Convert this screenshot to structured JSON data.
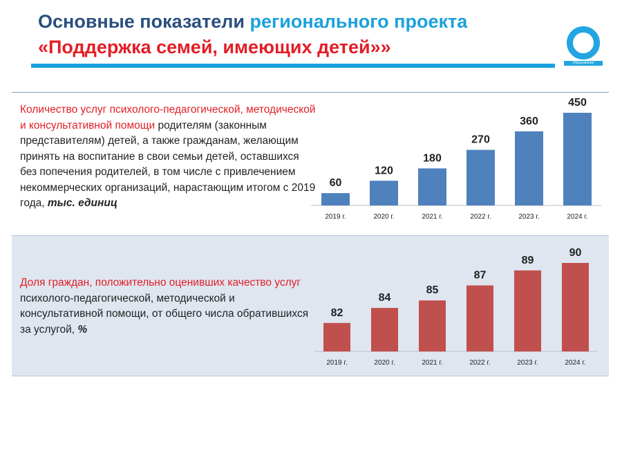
{
  "title": {
    "part1": "Основные показатели ",
    "part2": "регионального проекта",
    "line2": "«Поддержка семей, имеющих детей»»"
  },
  "logo": {
    "text": "Образование"
  },
  "panels": [
    {
      "desc_red": "Количество услуг психолого-педагогической, методической и консультативной помощи",
      "desc_rest": " родителям (законным представителям) детей, а также гражданам, желающим принять на воспитание в свои семьи детей, оставшихся без попечения родителей, в том числе с привлечением некоммерческих организаций, нарастающим итогом с 2019 года, ",
      "desc_unit": "тыс. единиц"
    },
    {
      "desc_red": "Доля граждан, положительно оценивших качество услуг",
      "desc_rest": " психолого-педагогической, методической и консультативной помощи, от общего числа обратившихся за услугой, ",
      "desc_unit": "%"
    }
  ],
  "chart_data": [
    {
      "type": "bar",
      "categories": [
        "2019 г.",
        "2020 г.",
        "2021 г.",
        "2022 г.",
        "2023 г.",
        "2024 г."
      ],
      "values": [
        60,
        120,
        180,
        270,
        360,
        450
      ],
      "ylim": [
        0,
        450
      ],
      "color": "#4f81bd",
      "unit": "тыс. единиц"
    },
    {
      "type": "bar",
      "categories": [
        "2019 г.",
        "2020 г.",
        "2021 г.",
        "2022 г.",
        "2023 г.",
        "2024 г."
      ],
      "values": [
        82,
        84,
        85,
        87,
        89,
        90
      ],
      "ylim": [
        78.2,
        90
      ],
      "color": "#c0504d",
      "unit": "%"
    }
  ]
}
